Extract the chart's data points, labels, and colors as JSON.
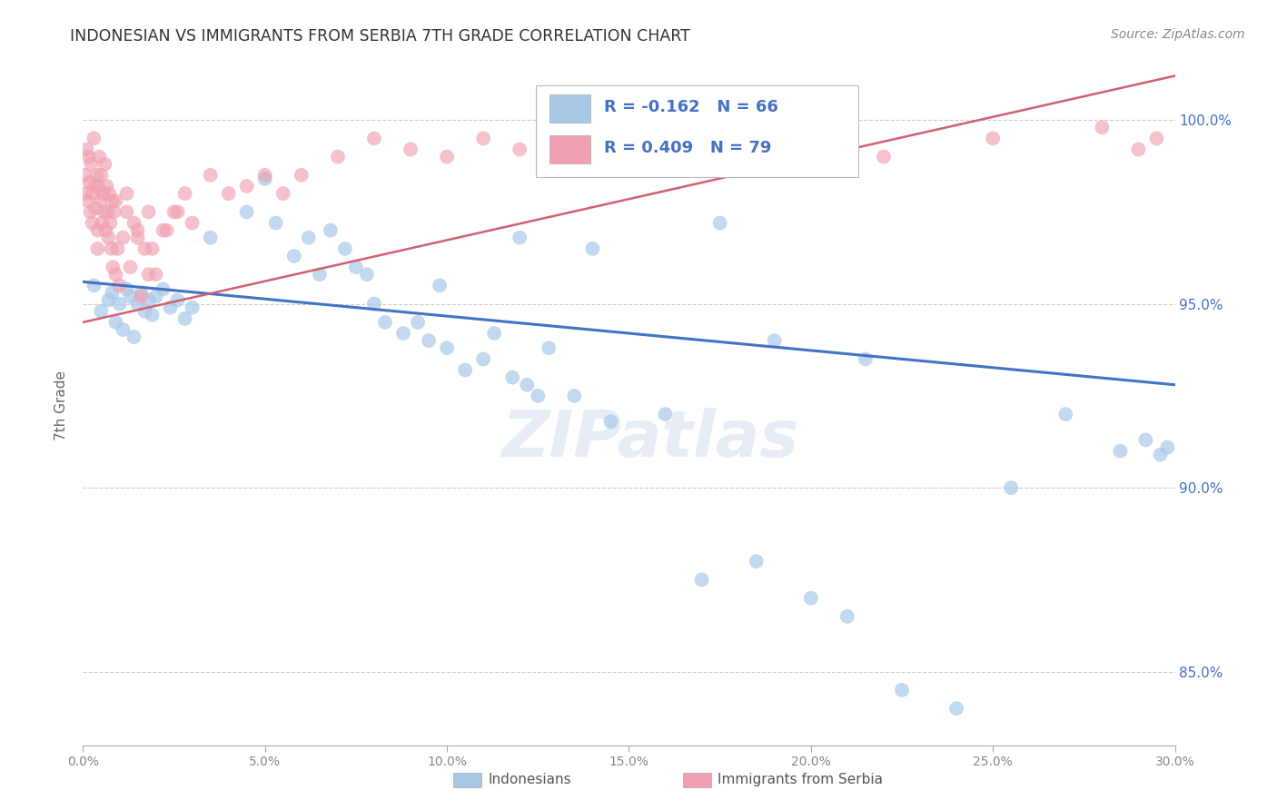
{
  "title": "INDONESIAN VS IMMIGRANTS FROM SERBIA 7TH GRADE CORRELATION CHART",
  "source": "Source: ZipAtlas.com",
  "ylabel": "7th Grade",
  "xmin": 0.0,
  "xmax": 30.0,
  "ymin": 83.0,
  "ymax": 101.5,
  "legend_r_blue": "-0.162",
  "legend_n_blue": "66",
  "legend_r_pink": "0.409",
  "legend_n_pink": "79",
  "label_blue": "Indonesians",
  "label_pink": "Immigrants from Serbia",
  "blue_color": "#a8c8e8",
  "pink_color": "#f0a0b0",
  "blue_line_color": "#4472c4",
  "pink_line_color": "#d06070",
  "legend_text_color": "#333333",
  "legend_value_color": "#4472c4",
  "watermark": "ZIPatlas",
  "blue_scatter_x": [
    0.3,
    0.5,
    0.7,
    0.8,
    0.9,
    1.0,
    1.1,
    1.2,
    1.3,
    1.4,
    1.5,
    1.6,
    1.7,
    1.8,
    1.9,
    2.0,
    2.2,
    2.4,
    2.6,
    2.8,
    3.0,
    3.5,
    4.5,
    5.0,
    5.3,
    5.8,
    6.2,
    6.5,
    6.8,
    7.2,
    7.5,
    8.0,
    8.3,
    8.8,
    9.2,
    9.5,
    10.0,
    10.5,
    11.0,
    11.3,
    11.8,
    12.2,
    12.5,
    12.8,
    13.5,
    14.5,
    16.0,
    17.0,
    18.5,
    20.0,
    21.0,
    22.5,
    24.0,
    25.5,
    27.0,
    28.5,
    29.2,
    29.6,
    29.8,
    19.0,
    21.5,
    14.0,
    12.0,
    9.8,
    7.8,
    17.5
  ],
  "blue_scatter_y": [
    95.5,
    94.8,
    95.1,
    95.3,
    94.5,
    95.0,
    94.3,
    95.4,
    95.2,
    94.1,
    95.0,
    95.3,
    94.8,
    95.1,
    94.7,
    95.2,
    95.4,
    94.9,
    95.1,
    94.6,
    94.9,
    96.8,
    97.5,
    98.4,
    97.2,
    96.3,
    96.8,
    95.8,
    97.0,
    96.5,
    96.0,
    95.0,
    94.5,
    94.2,
    94.5,
    94.0,
    93.8,
    93.2,
    93.5,
    94.2,
    93.0,
    92.8,
    92.5,
    93.8,
    92.5,
    91.8,
    92.0,
    87.5,
    88.0,
    87.0,
    86.5,
    84.5,
    84.0,
    90.0,
    92.0,
    91.0,
    91.3,
    90.9,
    91.1,
    94.0,
    93.5,
    96.5,
    96.8,
    95.5,
    95.8,
    97.2
  ],
  "pink_scatter_x": [
    0.05,
    0.08,
    0.1,
    0.12,
    0.15,
    0.18,
    0.2,
    0.22,
    0.25,
    0.28,
    0.3,
    0.32,
    0.35,
    0.38,
    0.4,
    0.42,
    0.45,
    0.48,
    0.5,
    0.52,
    0.55,
    0.58,
    0.6,
    0.62,
    0.65,
    0.68,
    0.7,
    0.72,
    0.75,
    0.78,
    0.8,
    0.82,
    0.85,
    0.9,
    0.95,
    1.0,
    1.1,
    1.2,
    1.3,
    1.4,
    1.5,
    1.6,
    1.7,
    1.8,
    1.9,
    2.0,
    2.2,
    2.5,
    2.8,
    3.0,
    3.5,
    4.0,
    4.5,
    5.0,
    5.5,
    6.0,
    7.0,
    8.0,
    9.0,
    10.0,
    11.0,
    12.0,
    13.0,
    14.0,
    16.0,
    18.0,
    20.0,
    22.0,
    25.0,
    28.0,
    29.0,
    29.5,
    2.3,
    1.8,
    0.9,
    1.5,
    2.6,
    0.4,
    1.2
  ],
  "pink_scatter_y": [
    98.5,
    98.0,
    99.2,
    97.8,
    99.0,
    98.3,
    97.5,
    98.8,
    97.2,
    98.0,
    99.5,
    98.2,
    97.6,
    98.5,
    97.0,
    98.2,
    99.0,
    97.8,
    98.5,
    97.2,
    98.0,
    97.5,
    98.8,
    97.0,
    98.2,
    97.5,
    96.8,
    98.0,
    97.2,
    96.5,
    97.8,
    96.0,
    97.5,
    95.8,
    96.5,
    95.5,
    96.8,
    97.5,
    96.0,
    97.2,
    96.8,
    95.2,
    96.5,
    95.8,
    96.5,
    95.8,
    97.0,
    97.5,
    98.0,
    97.2,
    98.5,
    98.0,
    98.2,
    98.5,
    98.0,
    98.5,
    99.0,
    99.5,
    99.2,
    99.0,
    99.5,
    99.2,
    99.0,
    99.5,
    99.8,
    99.2,
    99.5,
    99.0,
    99.5,
    99.8,
    99.2,
    99.5,
    97.0,
    97.5,
    97.8,
    97.0,
    97.5,
    96.5,
    98.0
  ],
  "blue_trend_x": [
    0.0,
    30.0
  ],
  "blue_trend_y": [
    95.6,
    92.8
  ],
  "pink_trend_x": [
    0.0,
    30.0
  ],
  "pink_trend_y": [
    94.5,
    101.2
  ],
  "yticks_shown": [
    85.0,
    90.0,
    95.0,
    100.0
  ],
  "xticks_shown": [
    0.0,
    5.0,
    10.0,
    15.0,
    20.0,
    25.0,
    30.0
  ],
  "grid_color": "#cccccc",
  "background_color": "#ffffff",
  "axis_color": "#aaaaaa",
  "tick_color": "#888888",
  "right_tick_color": "#4472c4",
  "source_color": "#888888",
  "title_color": "#333333"
}
